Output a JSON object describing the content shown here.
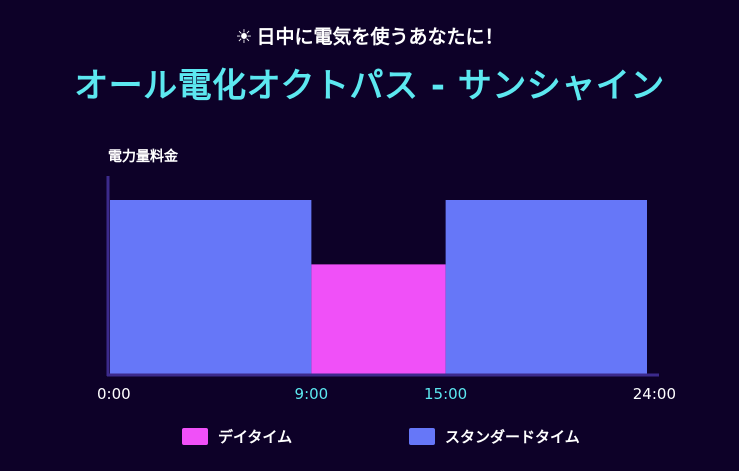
{
  "header": {
    "subtitle_icon": "sun-icon",
    "subtitle_icon_glyph": "☀",
    "subtitle": "日中に電気を使うあなたに！",
    "title": "オール電化オクトパス - サンシャイン"
  },
  "colors": {
    "background": "#0d0128",
    "title": "#5ce8f0",
    "axis": "#3c2a8c",
    "tick_default": "#ffffff",
    "tick_highlight": "#5ce8f0",
    "day_time": "#f050f8",
    "standard_time": "#6677f8"
  },
  "chart_data": {
    "type": "bar",
    "title": "",
    "ylabel": "電力量料金",
    "xlabel": "",
    "xlim": [
      0,
      24
    ],
    "ylim": [
      0,
      1
    ],
    "grid": false,
    "legend_position": "bottom",
    "segments": [
      {
        "start": 0,
        "end": 9,
        "value": 1.0,
        "series": "スタンダードタイム"
      },
      {
        "start": 9,
        "end": 15,
        "value": 0.63,
        "series": "デイタイム"
      },
      {
        "start": 15,
        "end": 24,
        "value": 1.0,
        "series": "スタンダードタイム"
      }
    ],
    "x_ticks": [
      {
        "value": 0,
        "label": "0:00",
        "highlight": false
      },
      {
        "value": 9,
        "label": "9:00",
        "highlight": true
      },
      {
        "value": 15,
        "label": "15:00",
        "highlight": true
      },
      {
        "value": 24,
        "label": "24:00",
        "highlight": false
      }
    ],
    "series": [
      {
        "name": "デイタイム",
        "color": "#f050f8"
      },
      {
        "name": "スタンダードタイム",
        "color": "#6677f8"
      }
    ]
  }
}
